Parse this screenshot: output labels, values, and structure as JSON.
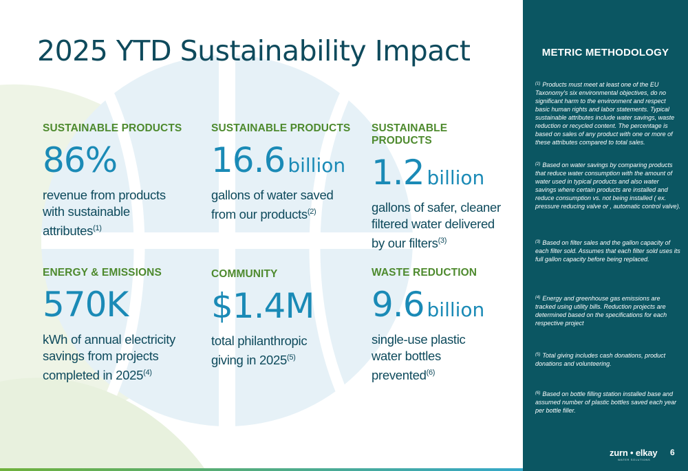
{
  "title": "2025 YTD Sustainability Impact",
  "metrics": [
    {
      "category": "SUSTAINABLE PRODUCTS",
      "value": "86%",
      "unit": "",
      "description": "revenue from products with sustainable attributes",
      "note_ref": "(1)"
    },
    {
      "category": "SUSTAINABLE PRODUCTS",
      "value": "16.6",
      "unit": "billion",
      "description": "gallons of water saved from our products",
      "note_ref": "(2)"
    },
    {
      "category": "SUSTAINABLE PRODUCTS",
      "value": "1.2",
      "unit": "billion",
      "description": "gallons of safer, cleaner filtered water delivered by our filters",
      "note_ref": "(3)"
    },
    {
      "category": "ENERGY & EMISSIONS",
      "value": "570K",
      "unit": "",
      "description": "kWh of annual electricity savings from projects completed in 2025",
      "note_ref": "(4)"
    },
    {
      "category": "COMMUNITY",
      "value": "$1.4M",
      "unit": "",
      "description": "total philanthropic giving in 2025",
      "note_ref": "(5)"
    },
    {
      "category": "WASTE REDUCTION",
      "value": "9.6",
      "unit": "billion",
      "description": "single-use plastic water bottles prevented",
      "note_ref": "(6)"
    }
  ],
  "methodology": {
    "title": "METRIC METHODOLOGY",
    "notes": [
      {
        "num": "(1)",
        "text": "Products must meet at least one of the EU Taxonomy's six environmental objectives, do no significant harm to the environment and respect basic human rights and labor statements. Typical sustainable attributes include water savings, waste reduction or recycled content. The percentage is based on sales of any product with one or more of these attributes compared to total sales."
      },
      {
        "num": "(2)",
        "text": "Based on water savings by comparing products that reduce water consumption with the amount of water used in typical products and also water savings where certain products are installed and reduce consumption vs. not being installed ( ex. pressure reducing valve or , automatic control valve)."
      },
      {
        "num": "(3)",
        "text": "Based on filter sales and the gallon capacity of each filter sold. Assumes that each filter sold uses its full gallon capacity before being replaced."
      },
      {
        "num": "(4)",
        "text": "Energy and greenhouse gas emissions are tracked using utility bills. Reduction projects are determined based on the specifications for each respective project"
      },
      {
        "num": "(5)",
        "text": "Total giving includes cash donations, product donations and volunteering."
      },
      {
        "num": "(6)",
        "text": "Based on bottle filling station installed base and assumed number of plastic bottles saved each year per bottle filler."
      }
    ]
  },
  "footer": {
    "logo_text": "zurn • elkay",
    "logo_subtext": "WATER SOLUTIONS",
    "page_number": "6"
  },
  "colors": {
    "title": "#0e4a5c",
    "category": "#4e8a2e",
    "value": "#1a8ab6",
    "panel": "#0b5662"
  }
}
